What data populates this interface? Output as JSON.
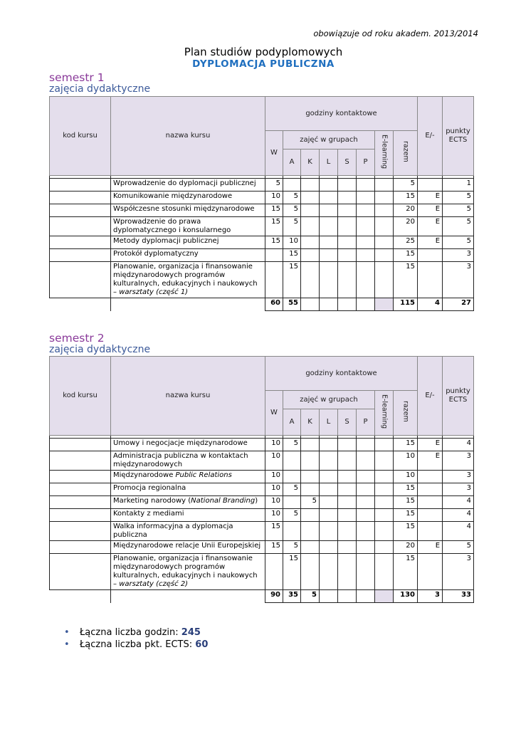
{
  "header": {
    "note": "obowiązuje od roku akadem. 2013/2014",
    "title": "Plan studiów podyplomowych",
    "subtitle": "DYPLOMACJA  PUBLICZNA"
  },
  "semesters": [
    {
      "title": "semestr 1",
      "subtitle": "zajęcia dydaktyczne",
      "table": {
        "headers": {
          "code": "kod kursu",
          "name": "nazwa kursu",
          "contact": "godziny kontaktowe",
          "groups": "zajęć w grupach",
          "W": "W",
          "A": "A",
          "K": "K",
          "L": "L",
          "S": "S",
          "P": "P",
          "elearning": "E-learning",
          "total": "razem",
          "exam": "E/-",
          "ects": "punkty ECTS"
        },
        "rows": [
          [
            null,
            "Wprowadzenie do dyplomacji publicznej",
            5,
            null,
            null,
            null,
            null,
            null,
            null,
            5,
            null,
            1
          ],
          [
            null,
            "Komunikowanie międzynarodowe",
            10,
            5,
            null,
            null,
            null,
            null,
            null,
            15,
            "E",
            5
          ],
          [
            null,
            "Współczesne stosunki międzynarodowe",
            15,
            5,
            null,
            null,
            null,
            null,
            null,
            20,
            "E",
            5
          ],
          [
            null,
            "Wprowadzenie do prawa dyplomatycznego i konsularnego",
            15,
            5,
            null,
            null,
            null,
            null,
            null,
            20,
            "E",
            5
          ],
          [
            null,
            "Metody dyplomacji publicznej",
            15,
            10,
            null,
            null,
            null,
            null,
            null,
            25,
            "E",
            5
          ],
          [
            null,
            "Protokół dyplomatyczny",
            null,
            15,
            null,
            null,
            null,
            null,
            null,
            15,
            null,
            3
          ],
          [
            null,
            [
              {
                "text": "Planowanie, organizacja i finansowanie międzynarodowych programów kulturalnych, edukacyjnych i naukowych – "
              },
              {
                "text": "warsztaty (część 1)",
                "italic": true
              }
            ],
            null,
            15,
            null,
            null,
            null,
            null,
            null,
            15,
            null,
            3
          ]
        ],
        "total": [
          null,
          null,
          60,
          55,
          null,
          null,
          null,
          null,
          null,
          115,
          4,
          27
        ]
      }
    },
    {
      "title": "semestr 2",
      "subtitle": "zajęcia dydaktyczne",
      "table": {
        "headers": {
          "code": "kod kursu",
          "name": "nazwa kursu",
          "contact": "godziny kontaktowe",
          "groups": "zajęć w grupach",
          "W": "W",
          "A": "A",
          "K": "K",
          "L": "L",
          "S": "S",
          "P": "P",
          "elearning": "E-learning",
          "total": "razem",
          "exam": "E/-",
          "ects": "punkty ECTS"
        },
        "rows": [
          [
            null,
            "Umowy i negocjacje międzynarodowe",
            10,
            5,
            null,
            null,
            null,
            null,
            null,
            15,
            "E",
            4
          ],
          [
            null,
            "Administracja publiczna w kontaktach międzynarodowych",
            10,
            null,
            null,
            null,
            null,
            null,
            null,
            10,
            "E",
            3
          ],
          [
            null,
            [
              {
                "text": "Międzynarodowe "
              },
              {
                "text": "Public Relations",
                "italic": true
              }
            ],
            10,
            null,
            null,
            null,
            null,
            null,
            null,
            10,
            null,
            3
          ],
          [
            null,
            "Promocja regionalna",
            10,
            5,
            null,
            null,
            null,
            null,
            null,
            15,
            null,
            3
          ],
          [
            null,
            [
              {
                "text": "Marketing narodowy ("
              },
              {
                "text": "National Branding",
                "italic": true
              },
              {
                "text": ")"
              }
            ],
            10,
            null,
            5,
            null,
            null,
            null,
            null,
            15,
            null,
            4
          ],
          [
            null,
            "Kontakty z mediami",
            10,
            5,
            null,
            null,
            null,
            null,
            null,
            15,
            null,
            4
          ],
          [
            null,
            "Walka informacyjna a dyplomacja publiczna",
            15,
            null,
            null,
            null,
            null,
            null,
            null,
            15,
            null,
            4
          ],
          [
            null,
            "Międzynarodowe relacje Unii Europejskiej",
            15,
            5,
            null,
            null,
            null,
            null,
            null,
            20,
            "E",
            5
          ],
          [
            null,
            [
              {
                "text": "Planowanie, organizacja i finansowanie międzynarodowych programów kulturalnych, edukacyjnych i naukowych – "
              },
              {
                "text": "warsztaty (część 2)",
                "italic": true
              }
            ],
            null,
            15,
            null,
            null,
            null,
            null,
            null,
            15,
            null,
            3
          ]
        ],
        "total": [
          null,
          null,
          90,
          35,
          5,
          null,
          null,
          null,
          null,
          130,
          3,
          33
        ]
      }
    }
  ],
  "summary": [
    {
      "label": "Łączna liczba godzin:",
      "value": 245
    },
    {
      "label": "Łączna liczba pkt. ECTS:",
      "value": 60
    }
  ]
}
